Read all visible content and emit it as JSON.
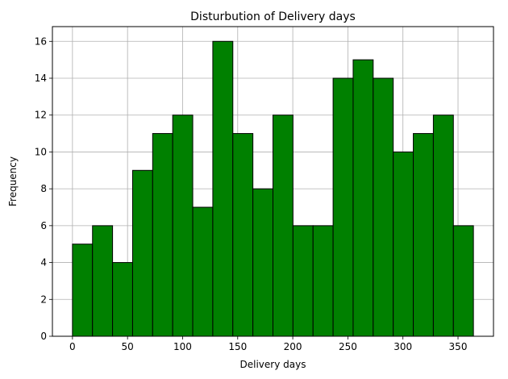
{
  "chart_data": {
    "type": "bar",
    "title": "Disturbution of Delivery days",
    "xlabel": "Delivery days",
    "ylabel": "Frequency",
    "bin_edges": [
      0.0,
      18.2,
      36.4,
      54.6,
      72.8,
      91.0,
      109.2,
      127.4,
      145.6,
      163.8,
      182.0,
      200.2,
      218.4,
      236.6,
      254.8,
      273.0,
      291.2,
      309.4,
      327.6,
      345.8,
      364.0
    ],
    "values": [
      5,
      6,
      4,
      9,
      11,
      12,
      7,
      16,
      11,
      8,
      12,
      6,
      6,
      14,
      15,
      14,
      10,
      11,
      12,
      6
    ],
    "xlim": [
      -18.2,
      382.2
    ],
    "ylim": [
      0,
      16.8
    ],
    "xticks": [
      0,
      50,
      100,
      150,
      200,
      250,
      300,
      350
    ],
    "yticks": [
      0,
      2,
      4,
      6,
      8,
      10,
      12,
      14,
      16
    ],
    "grid": true,
    "bar_color": "#008000",
    "edge_color": "#000000",
    "grid_color": "#b0b0b0"
  }
}
